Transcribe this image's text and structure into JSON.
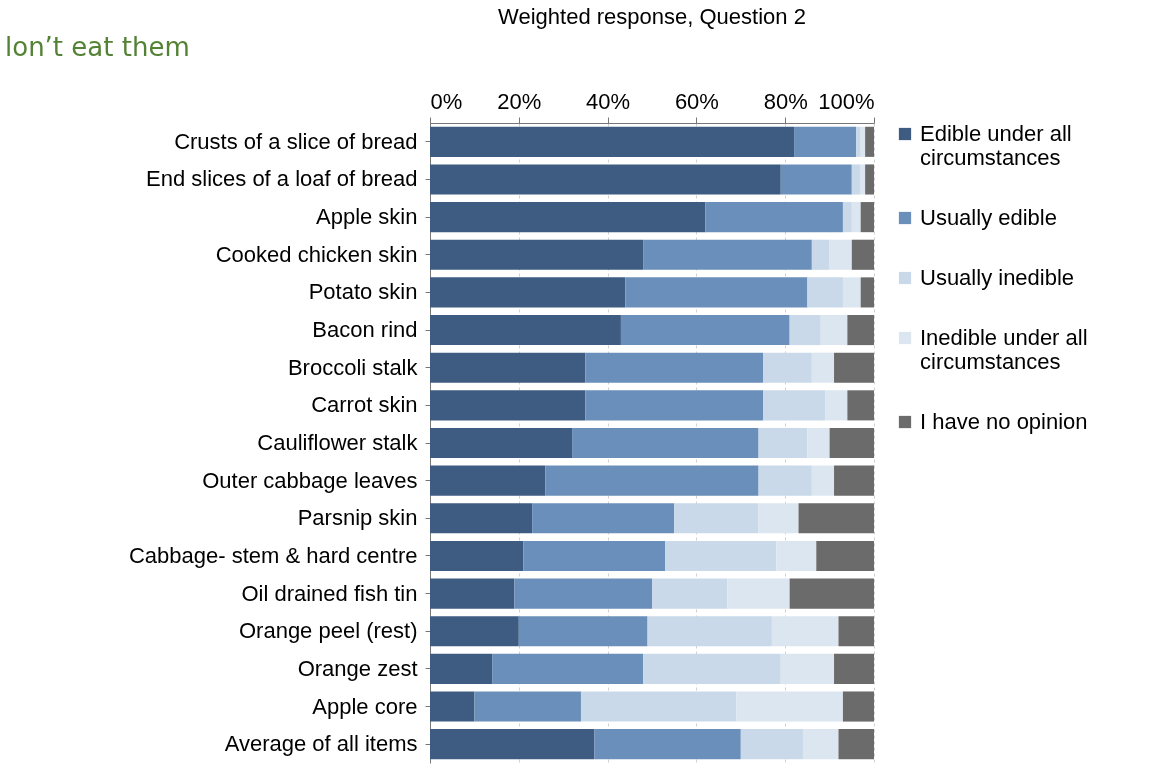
{
  "chart_data": {
    "type": "bar",
    "orientation": "horizontal",
    "stacked": true,
    "title": "Weighted response, Question 2",
    "annotations": [
      "lon’t eat them"
    ],
    "categories": [
      "Crusts of a slice of bread",
      "End slices of a loaf of bread",
      "Apple skin",
      "Cooked chicken skin",
      "Potato skin",
      "Bacon rind",
      "Broccoli stalk",
      "Carrot skin",
      "Cauliflower stalk",
      "Outer cabbage leaves",
      "Parsnip skin",
      "Cabbage- stem & hard centre",
      "Oil drained fish tin",
      "Orange peel (rest)",
      "Orange zest",
      "Apple core",
      "Average of all items"
    ],
    "series": [
      {
        "name": "Edible under all circumstances",
        "color": "#3e5c82",
        "values": [
          82,
          79,
          62,
          48,
          44,
          43,
          35,
          35,
          32,
          26,
          23,
          21,
          19,
          20,
          14,
          10,
          37
        ]
      },
      {
        "name": "Usually edible",
        "color": "#6a8fba",
        "values": [
          14,
          16,
          31,
          38,
          41,
          38,
          40,
          40,
          42,
          48,
          32,
          32,
          31,
          29,
          34,
          24,
          33
        ]
      },
      {
        "name": "Usually inedible",
        "color": "#c9d9e9",
        "values": [
          1,
          2,
          2,
          4,
          8,
          7,
          11,
          14,
          11,
          12,
          19,
          25,
          17,
          28,
          31,
          35,
          14
        ]
      },
      {
        "name": "Inedible under all circumstances",
        "color": "#dce6f1",
        "values": [
          1,
          1,
          2,
          5,
          4,
          6,
          5,
          5,
          5,
          5,
          9,
          9,
          14,
          15,
          12,
          24,
          8
        ]
      },
      {
        "name": "I have no opinion",
        "color": "#6b6b6b",
        "values": [
          2,
          2,
          3,
          5,
          3,
          6,
          9,
          6,
          10,
          9,
          17,
          13,
          19,
          8,
          9,
          7,
          8
        ]
      }
    ],
    "xlim": [
      0,
      100
    ],
    "xticks": [
      {
        "value": 0,
        "label": "0%"
      },
      {
        "value": 20,
        "label": "20%"
      },
      {
        "value": 40,
        "label": "40%"
      },
      {
        "value": 60,
        "label": "60%"
      },
      {
        "value": 80,
        "label": "80%"
      },
      {
        "value": 100,
        "label": "100%"
      }
    ],
    "grid": "x",
    "legend": "right"
  }
}
